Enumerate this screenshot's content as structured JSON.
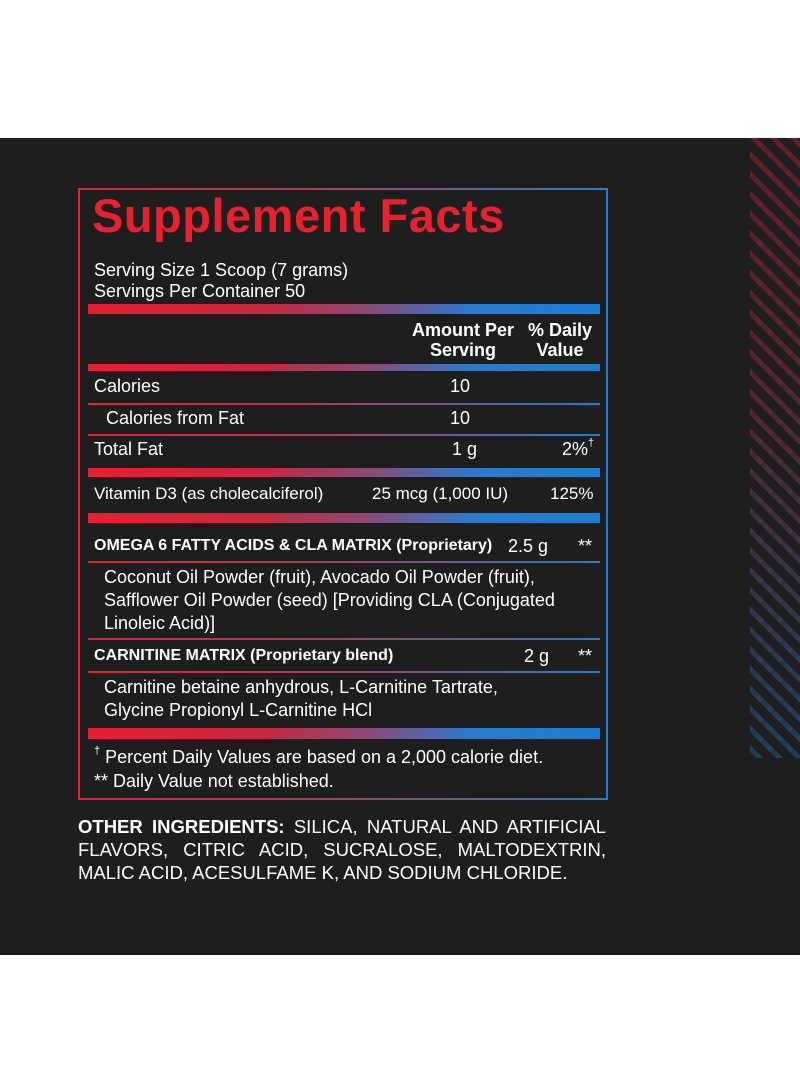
{
  "title": "Supplement Facts",
  "serving_size": "Serving Size 1 Scoop (7 grams)",
  "servings_per_container": "Servings Per Container 50",
  "col_amount": "Amount Per Serving",
  "col_dv": "% Daily Value",
  "rows": {
    "calories": {
      "label": "Calories",
      "amount": "10"
    },
    "calories_fat": {
      "label": "Calories from Fat",
      "amount": "10"
    },
    "total_fat": {
      "label": "Total Fat",
      "amount": "1 g",
      "dv": "2%",
      "dv_mark": "†"
    },
    "vitamin_d3": {
      "label": "Vitamin D3 (as cholecalciferol)",
      "amount": "25 mcg (1,000 IU)",
      "dv": "125%"
    },
    "omega": {
      "label": "OMEGA 6 FATTY ACIDS & CLA MATRIX (Proprietary)",
      "amount": "2.5 g",
      "dv": "**"
    },
    "omega_ing": "Coconut Oil Powder (fruit), Avocado Oil Powder (fruit), Safflower Oil Powder (seed) [Providing CLA (Conjugated Linoleic Acid)]",
    "carnitine": {
      "label": "CARNITINE MATRIX (Proprietary blend)",
      "amount": "2 g",
      "dv": "**"
    },
    "carnitine_ing": "Carnitine betaine anhydrous, L-Carnitine Tartrate, Glycine Propionyl L-Carnitine HCl"
  },
  "footnote_mark": "†",
  "footnote_1": "Percent Daily Values are based on a 2,000 calorie diet.",
  "footnote_2": "** Daily Value not established.",
  "other_label": "OTHER INGREDIENTS:",
  "other_text": "SILICA, NATURAL AND ARTIFICIAL FLAVORS, CITRIC ACID, SUCRALOSE, MALTODEXTRIN, MALIC ACID, ACESULFAME K, AND SODIUM CHLORIDE.",
  "colors": {
    "panel": "#1e1e1f",
    "red": "#e8202f",
    "blue": "#1a7fd6"
  }
}
